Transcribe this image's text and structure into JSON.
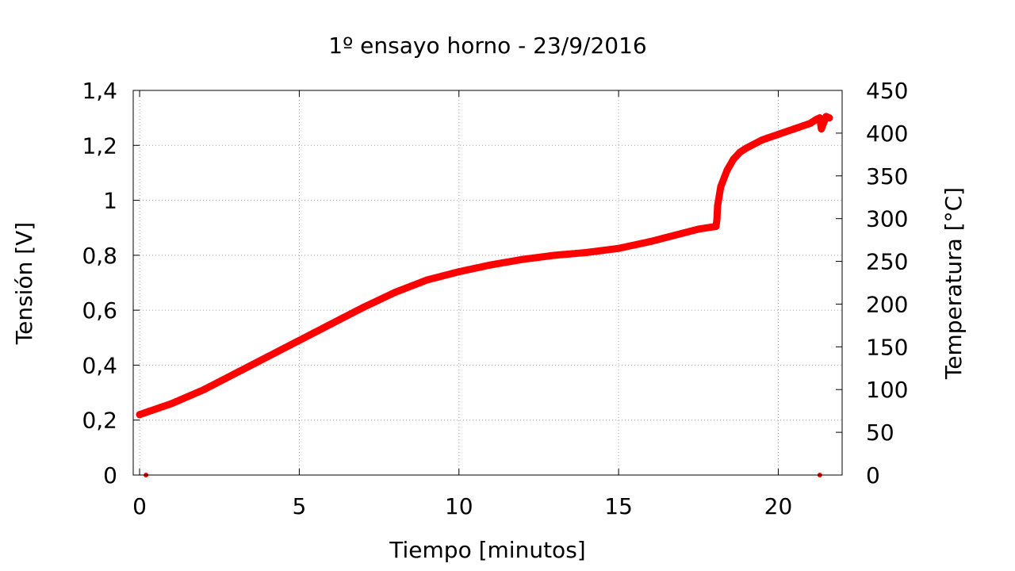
{
  "chart_data": {
    "type": "scatter",
    "title": "1º ensayo horno - 23/9/2016",
    "xlabel": "Tiempo [minutos]",
    "ylabel": "Tensión [V]",
    "y2label": "Temperatura [°C]",
    "xlim": [
      -0.2,
      22
    ],
    "ylim": [
      0,
      1.4
    ],
    "y2lim": [
      0,
      450
    ],
    "grid": true,
    "x_ticks": [
      0,
      5,
      10,
      15,
      20
    ],
    "x_tick_labels": [
      "0",
      "5",
      "10",
      "15",
      "20"
    ],
    "y_ticks": [
      0,
      0.2,
      0.4,
      0.6,
      0.8,
      1.0,
      1.2,
      1.4
    ],
    "y_tick_labels": [
      "0",
      "0,2",
      "0,4",
      "0,6",
      "0,8",
      "1",
      "1,2",
      "1,4"
    ],
    "y2_ticks": [
      0,
      50,
      100,
      150,
      200,
      250,
      300,
      350,
      400,
      450
    ],
    "y2_tick_labels": [
      "0",
      "50",
      "100",
      "150",
      "200",
      "250",
      "300",
      "350",
      "400",
      "450"
    ],
    "color": "#ff0000",
    "series": [
      {
        "x": [
          0,
          0.5,
          1,
          2,
          3,
          4,
          5,
          6,
          7,
          8,
          9,
          10,
          11,
          12,
          13,
          14,
          15,
          16,
          17,
          17.5,
          18.05,
          18.08,
          18.1,
          18.2,
          18.4,
          18.6,
          18.8,
          19,
          19.5,
          20,
          20.5,
          21,
          21.2,
          21.3,
          21.35,
          21.5,
          21.6
        ],
        "y": [
          0.22,
          0.24,
          0.26,
          0.31,
          0.37,
          0.43,
          0.49,
          0.55,
          0.61,
          0.665,
          0.71,
          0.74,
          0.765,
          0.785,
          0.8,
          0.81,
          0.825,
          0.85,
          0.88,
          0.895,
          0.905,
          0.93,
          0.98,
          1.05,
          1.11,
          1.15,
          1.175,
          1.19,
          1.22,
          1.24,
          1.26,
          1.28,
          1.295,
          1.3,
          1.26,
          1.305,
          1.3
        ]
      }
    ],
    "outliers": [
      {
        "x": 0.2,
        "y": 0.0
      },
      {
        "x": 21.3,
        "y": 0.0
      }
    ]
  }
}
